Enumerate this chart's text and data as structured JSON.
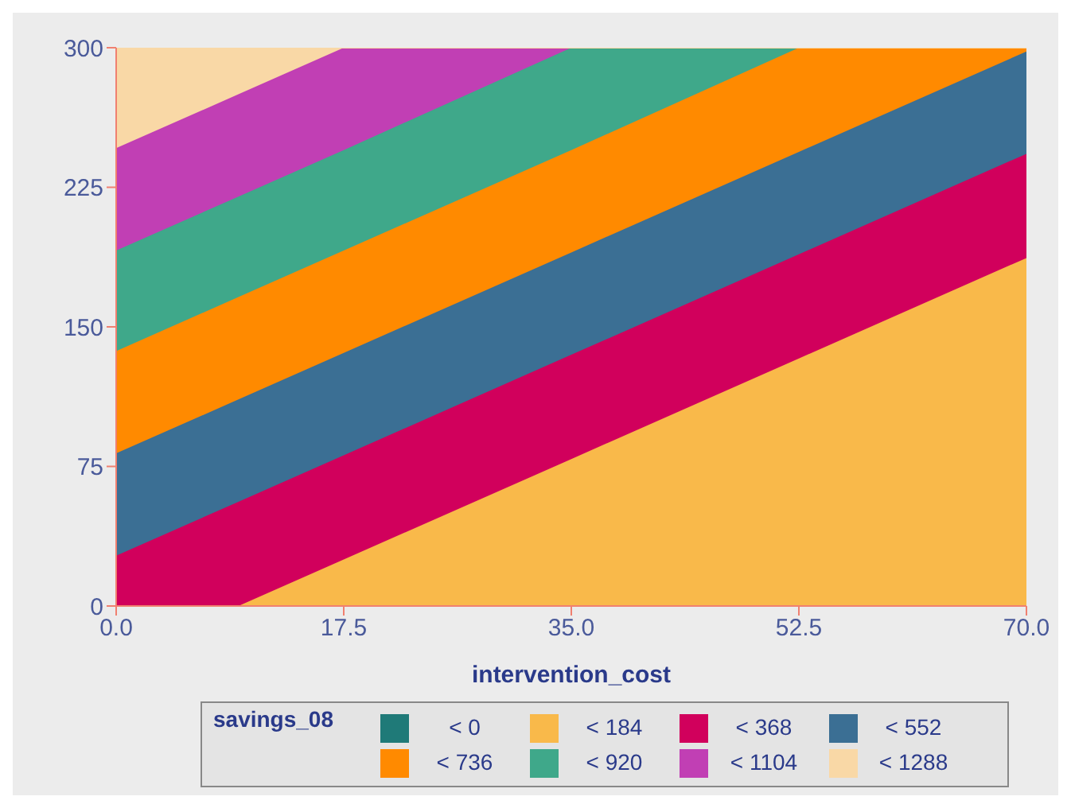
{
  "chart_data": {
    "type": "area",
    "stacked": true,
    "xlabel": "intervention_cost",
    "legend_title": "savings_08",
    "legend": "bottom",
    "grid": false,
    "x": [
      0,
      9.4,
      17.5,
      35,
      52.5,
      70
    ],
    "xlim": [
      0,
      70
    ],
    "xticks": [
      {
        "value": 0,
        "label": "0.0"
      },
      {
        "value": 17.5,
        "label": "17.5"
      },
      {
        "value": 35,
        "label": "35.0"
      },
      {
        "value": 52.5,
        "label": "52.5"
      },
      {
        "value": 70,
        "label": "70.0"
      }
    ],
    "ylim": [
      0,
      300
    ],
    "yticks": [
      0,
      75,
      150,
      225,
      300
    ],
    "series": [
      {
        "name": "< 0",
        "color": "#1f7a78",
        "values": [
          null,
          null,
          null,
          null,
          null,
          null
        ]
      },
      {
        "name": "< 184",
        "color": "#f9b94a",
        "values": [
          0,
          0,
          25,
          79,
          133,
          187
        ]
      },
      {
        "name": "< 368",
        "color": "#d1005c",
        "values": [
          27,
          56,
          56,
          56,
          56,
          56
        ]
      },
      {
        "name": "< 552",
        "color": "#3b6f94",
        "values": [
          55,
          55,
          55,
          55,
          55,
          55
        ]
      },
      {
        "name": "< 736",
        "color": "#ff8a00",
        "values": [
          55,
          55,
          55,
          55,
          56,
          2
        ]
      },
      {
        "name": "< 920",
        "color": "#3fa88a",
        "values": [
          54,
          54,
          54,
          55,
          0,
          0
        ]
      },
      {
        "name": "< 1104",
        "color": "#c13fb4",
        "values": [
          55,
          55,
          55,
          0,
          0,
          0
        ]
      },
      {
        "name": "< 1288",
        "color": "#f9d8a6",
        "values": [
          54,
          25,
          0,
          0,
          0,
          0
        ]
      }
    ]
  }
}
